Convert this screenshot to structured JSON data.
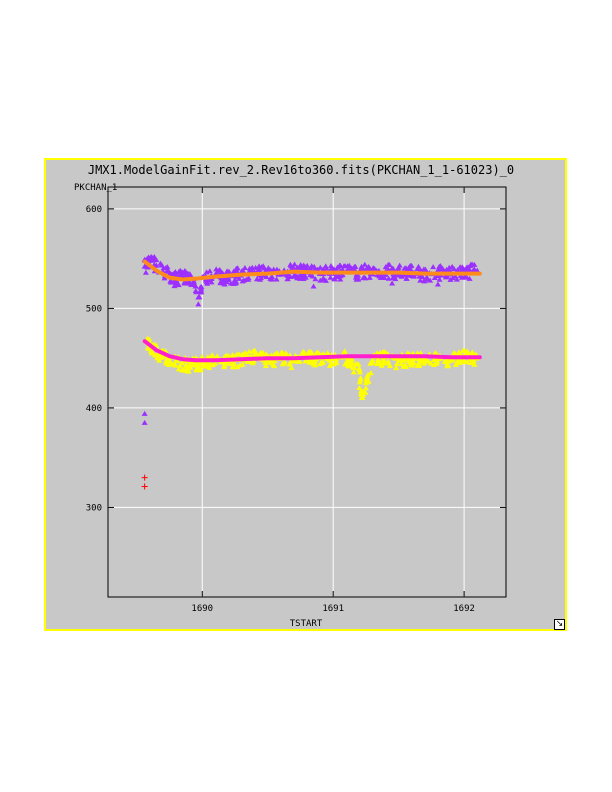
{
  "title": "JMX1.ModelGainFit.rev_2.Rev16to360.fits(PKCHAN_1_1-61023)_0",
  "icons": {
    "resize": "resize-corner-icon"
  },
  "colors": {
    "panel_bg": "#c8c8c8",
    "frame_border": "#ffff00",
    "grid": "#ffffff",
    "upper_points": "#9b30ff",
    "upper_fit": "#ff8c1a",
    "lower_points": "#ffff00",
    "lower_fit": "#ff1fcf",
    "outlier_triangle": "#9b30ff",
    "outlier_cross": "#ff0000"
  },
  "chart_data": {
    "type": "scatter",
    "title": "JMX1.ModelGainFit.rev_2.Rev16to360.fits(PKCHAN_1_1-61023)_0",
    "xlabel": "TSTART",
    "ylabel": "PKCHAN_1",
    "xlim": [
      1689.28,
      1692.32
    ],
    "ylim": [
      210,
      622
    ],
    "x_ticks": [
      1690,
      1691,
      1692
    ],
    "x_tick_labels": [
      "1690",
      "1691",
      "1692"
    ],
    "y_ticks": [
      300,
      400,
      500,
      600
    ],
    "y_tick_labels": [
      "300",
      "400",
      "500",
      "600"
    ],
    "grid": true,
    "series": [
      {
        "marker": "triangle",
        "x_range": [
          1689.56,
          1692.12
        ],
        "approx_level": 535,
        "x": [
          1689.56,
          1689.6,
          1689.65,
          1689.7,
          1689.75,
          1689.8,
          1689.85,
          1689.9,
          1689.95,
          1689.97,
          1690.0,
          1690.1,
          1690.2,
          1690.3,
          1690.4,
          1690.5,
          1690.6,
          1690.7,
          1690.8,
          1690.9,
          1691.0,
          1691.1,
          1691.2,
          1691.3,
          1691.4,
          1691.5,
          1691.6,
          1691.7,
          1691.8,
          1691.9,
          1692.0,
          1692.1
        ],
        "y": [
          542,
          548,
          543,
          537,
          534,
          529,
          532,
          530,
          522,
          504,
          531,
          534,
          530,
          535,
          536,
          537,
          534,
          538,
          537,
          535,
          536,
          537,
          536,
          538,
          537,
          536,
          537,
          535,
          536,
          536,
          537,
          538
        ]
      },
      {
        "name": "",
        "type": "line",
        "x": [
          1689.56,
          1689.65,
          1689.75,
          1689.85,
          1689.95,
          1690.1,
          1690.3,
          1690.5,
          1690.7,
          1690.9,
          1691.1,
          1691.3,
          1691.5,
          1691.7,
          1691.9,
          1692.12
        ],
        "y": [
          547,
          538,
          531,
          529,
          530,
          532,
          534,
          535,
          537,
          536,
          536,
          536,
          536,
          535,
          535,
          535
        ]
      },
      {
        "marker": "triangle",
        "x_range": [
          1689.58,
          1692.12
        ],
        "approx_level": 450,
        "x": [
          1689.58,
          1689.62,
          1689.7,
          1689.8,
          1689.9,
          1690.0,
          1690.1,
          1690.2,
          1690.3,
          1690.4,
          1690.5,
          1690.6,
          1690.7,
          1690.8,
          1690.9,
          1691.0,
          1691.1,
          1691.2,
          1691.22,
          1691.3,
          1691.4,
          1691.5,
          1691.6,
          1691.7,
          1691.8,
          1691.9,
          1692.0,
          1692.1
        ],
        "y": [
          466,
          460,
          452,
          447,
          443,
          446,
          448,
          447,
          449,
          452,
          449,
          451,
          447,
          452,
          450,
          449,
          451,
          438,
          410,
          448,
          451,
          447,
          450,
          450,
          449,
          450,
          452,
          450
        ]
      },
      {
        "name": "",
        "type": "line",
        "x": [
          1689.56,
          1689.65,
          1689.75,
          1689.85,
          1689.95,
          1690.1,
          1690.3,
          1690.5,
          1690.7,
          1690.9,
          1691.1,
          1691.3,
          1691.5,
          1691.7,
          1691.9,
          1692.12
        ],
        "y": [
          467,
          458,
          452,
          449,
          448,
          448,
          449,
          450,
          450,
          451,
          452,
          452,
          452,
          452,
          451,
          451
        ]
      },
      {
        "marker": "triangle",
        "x": [
          1689.56,
          1689.56
        ],
        "y": [
          394,
          385
        ]
      },
      {
        "marker": "cross",
        "x": [
          1689.56,
          1689.56
        ],
        "y": [
          330,
          321
        ]
      }
    ]
  }
}
